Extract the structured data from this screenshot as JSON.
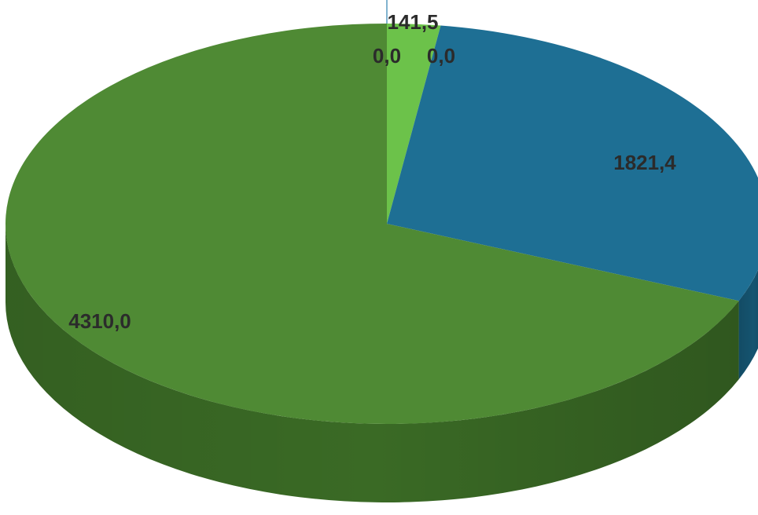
{
  "chart_data": {
    "type": "pie",
    "style": "3d",
    "slices": [
      {
        "label": "141,5",
        "value": 141.5,
        "color": "#6cc24a",
        "side_color": "#4f9a34"
      },
      {
        "label": "1821,4",
        "value": 1821.4,
        "color": "#1e6f94",
        "side_color": "#155470"
      },
      {
        "label": "4310,0",
        "value": 4310.0,
        "color": "#4f8a34",
        "side_color": "#3a6a25"
      },
      {
        "label": "0,0",
        "value": 0.0,
        "color": "#6fa8c8",
        "side_color": "#6fa8c8"
      },
      {
        "label": "0,0",
        "value": 0.0,
        "color": "#6fa8c8",
        "side_color": "#6fa8c8"
      }
    ],
    "title": "",
    "legend": "none"
  }
}
